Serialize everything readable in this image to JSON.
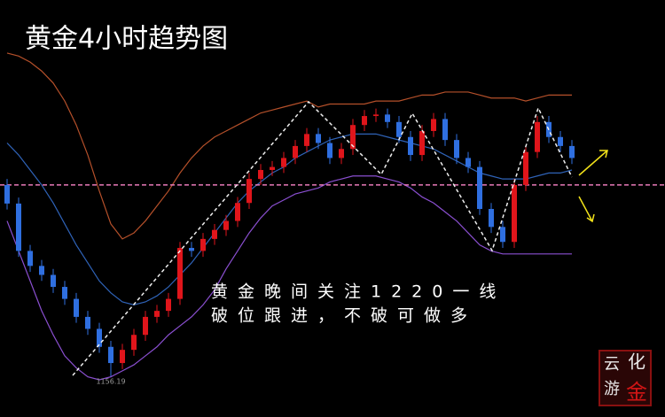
{
  "chart_data": {
    "type": "candlestick",
    "title": "黄金4小时趋势图",
    "annotation": [
      "黄金晚间关注1220一线",
      "破位跟进，不破可做多"
    ],
    "watermark": [
      "云",
      "化",
      "游",
      "金"
    ],
    "ylim": [
      1142.6,
      1281.7
    ],
    "up_color": "#e0151b",
    "down_color": "#2f6fe0",
    "open": [
      1220,
      1213.8,
      1198,
      1193,
      1190,
      1186,
      1182,
      1176,
      1172,
      1166,
      1160.6,
      1165,
      1170,
      1176,
      1178,
      1182,
      1199,
      1198,
      1202,
      1205,
      1208,
      1214,
      1222,
      1225,
      1226,
      1229,
      1233,
      1237,
      1234,
      1229,
      1232,
      1240,
      1243,
      1243.5,
      1241,
      1236,
      1230,
      1238,
      1242,
      1235,
      1229,
      1226,
      1212,
      1206,
      1201,
      1220,
      1231,
      1241,
      1236,
      1233
    ],
    "high": [
      1222,
      1215.8,
      1200,
      1195,
      1192,
      1188,
      1184,
      1178,
      1174,
      1168,
      1167,
      1172,
      1178,
      1180,
      1184,
      1201,
      1201,
      1204,
      1207,
      1210,
      1216,
      1224,
      1227,
      1228,
      1231,
      1235,
      1239,
      1239,
      1236,
      1234,
      1242,
      1245,
      1245.5,
      1245.5,
      1243,
      1238,
      1240,
      1244,
      1244,
      1237,
      1231,
      1228,
      1214,
      1208,
      1222,
      1233,
      1243,
      1243,
      1238,
      1235
    ],
    "low": [
      1211.8,
      1196,
      1191,
      1188,
      1184,
      1180,
      1174,
      1170,
      1164,
      1156.19,
      1158.6,
      1163,
      1168,
      1174,
      1176,
      1180,
      1196,
      1196,
      1200,
      1203,
      1206,
      1212,
      1220,
      1223,
      1224,
      1227,
      1231,
      1232,
      1227,
      1227,
      1230,
      1238,
      1241,
      1239,
      1234,
      1228,
      1228,
      1236,
      1233,
      1227,
      1224,
      1210,
      1204,
      1199,
      1199,
      1218,
      1229,
      1234,
      1231,
      1227
    ],
    "close": [
      1213.8,
      1198,
      1193,
      1190,
      1186,
      1182,
      1176,
      1172,
      1166,
      1160.6,
      1165,
      1170,
      1176,
      1178,
      1182,
      1199,
      1198,
      1202,
      1205,
      1208,
      1214,
      1222,
      1225,
      1226,
      1229,
      1233,
      1237,
      1234,
      1229,
      1232,
      1240,
      1243,
      1243.5,
      1241,
      1236,
      1230,
      1238,
      1242,
      1235,
      1229,
      1226,
      1212,
      1206,
      1201,
      1220,
      1231,
      1241,
      1236,
      1233,
      1229
    ],
    "series": [
      {
        "color": "#b5502a",
        "values": [
          1264,
          1263,
          1261,
          1258,
          1254,
          1248,
          1240,
          1230,
          1218,
          1207,
          1202,
          1204,
          1208,
          1213,
          1218,
          1224,
          1229,
          1233,
          1236,
          1238,
          1240,
          1242,
          1244,
          1245,
          1246,
          1247,
          1248,
          1246,
          1247,
          1247,
          1247,
          1247,
          1248,
          1248,
          1248,
          1249,
          1250,
          1250,
          1251,
          1251,
          1251,
          1250,
          1249,
          1249,
          1249,
          1248,
          1249,
          1250,
          1250,
          1250
        ]
      },
      {
        "color": "#2f63b8",
        "values": [
          1234,
          1230,
          1225,
          1220,
          1214,
          1207,
          1200,
          1194,
          1188,
          1184,
          1181,
          1180,
          1181,
          1183,
          1186,
          1190,
          1194,
          1199,
          1204,
          1209,
          1214,
          1218,
          1221,
          1224,
          1226,
          1229,
          1231,
          1233,
          1235,
          1236,
          1237,
          1237,
          1237,
          1236,
          1235,
          1234,
          1233,
          1232,
          1230,
          1228,
          1226,
          1224,
          1223,
          1222,
          1222,
          1222,
          1223,
          1224,
          1224,
          1225
        ]
      },
      {
        "color": "#8a4fd0",
        "values": [
          1208,
          1198,
          1188,
          1178,
          1170,
          1163,
          1159,
          1156,
          1155,
          1156,
          1158,
          1160,
          1163,
          1166,
          1170,
          1173,
          1176,
          1180,
          1185,
          1192,
          1198,
          1204,
          1209,
          1213,
          1215,
          1217,
          1218,
          1219,
          1221,
          1222,
          1223,
          1223,
          1223,
          1222,
          1221,
          1219,
          1216,
          1214,
          1211,
          1208,
          1204,
          1200,
          1198,
          1197,
          1197,
          1197,
          1197,
          1197,
          1197,
          1197
        ]
      }
    ],
    "hline": 1220,
    "hline_color": "#e87ab8"
  }
}
